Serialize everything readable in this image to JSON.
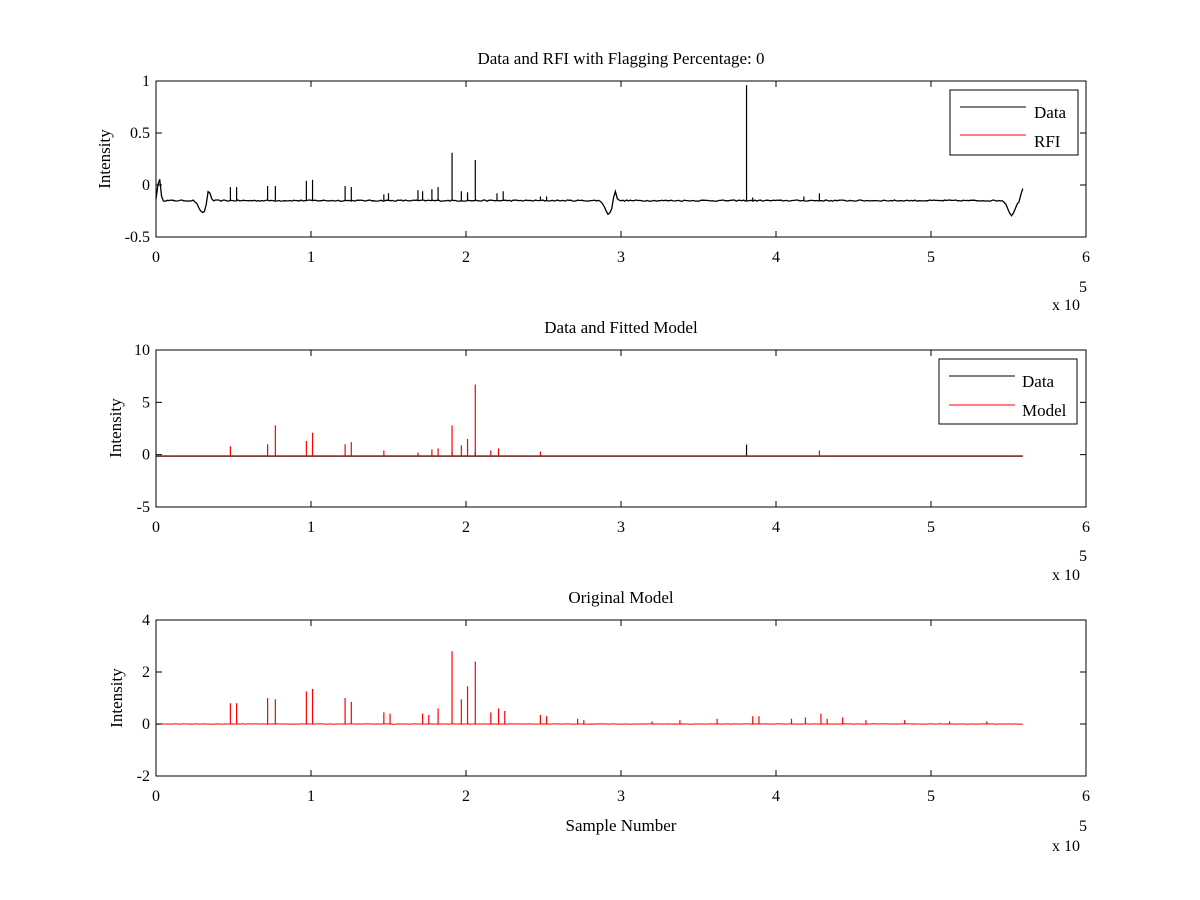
{
  "chart_data": [
    {
      "type": "line",
      "title": "Data and RFI with Flagging Percentage: 0",
      "xlabel": "",
      "ylabel": "Intensity",
      "xlim": [
        0,
        600000
      ],
      "ylim": [
        -0.5,
        1
      ],
      "x_ticks": [
        "0",
        "1",
        "2",
        "3",
        "4",
        "5",
        "6"
      ],
      "y_ticks": [
        "-0.5",
        "0",
        "0.5",
        "1"
      ],
      "x_exponent_text": "x 10",
      "x_exponent_power": "5",
      "grid": false,
      "legend": {
        "placement": "top-right",
        "entries": [
          "Data",
          "RFI"
        ]
      },
      "series": [
        {
          "name": "Data",
          "color": "#000000",
          "baseline": -0.15,
          "dips": [
            {
              "x": 30000,
              "y": -0.27
            },
            {
              "x": 292000,
              "y": -0.28
            },
            {
              "x": 552000,
              "y": -0.29
            }
          ],
          "bumps": [
            {
              "x": 2000,
              "y": 0.07
            },
            {
              "x": 34000,
              "y": -0.02
            },
            {
              "x": 296000,
              "y": -0.03
            },
            {
              "x": 559000,
              "y": -0.03
            }
          ],
          "spikes": [
            {
              "x": 48000,
              "y": -0.02
            },
            {
              "x": 52000,
              "y": -0.02
            },
            {
              "x": 72000,
              "y": -0.01
            },
            {
              "x": 77000,
              "y": -0.01
            },
            {
              "x": 97000,
              "y": 0.04
            },
            {
              "x": 101000,
              "y": 0.05
            },
            {
              "x": 122000,
              "y": -0.01
            },
            {
              "x": 126000,
              "y": -0.02
            },
            {
              "x": 147000,
              "y": -0.09
            },
            {
              "x": 150000,
              "y": -0.08
            },
            {
              "x": 169000,
              "y": -0.05
            },
            {
              "x": 172000,
              "y": -0.06
            },
            {
              "x": 178000,
              "y": -0.04
            },
            {
              "x": 182000,
              "y": -0.02
            },
            {
              "x": 191000,
              "y": 0.31
            },
            {
              "x": 197000,
              "y": -0.06
            },
            {
              "x": 201000,
              "y": -0.07
            },
            {
              "x": 206000,
              "y": 0.24
            },
            {
              "x": 220000,
              "y": -0.08
            },
            {
              "x": 224000,
              "y": -0.06
            },
            {
              "x": 248000,
              "y": -0.11
            },
            {
              "x": 252000,
              "y": -0.11
            },
            {
              "x": 381000,
              "y": 0.96
            },
            {
              "x": 385000,
              "y": -0.12
            },
            {
              "x": 418000,
              "y": -0.11
            },
            {
              "x": 428000,
              "y": -0.08
            }
          ]
        },
        {
          "name": "RFI",
          "color": "#ff0000",
          "values": []
        }
      ]
    },
    {
      "type": "line",
      "title": "Data and Fitted Model",
      "xlabel": "",
      "ylabel": "Intensity",
      "xlim": [
        0,
        600000
      ],
      "ylim": [
        -5,
        10
      ],
      "x_ticks": [
        "0",
        "1",
        "2",
        "3",
        "4",
        "5",
        "6"
      ],
      "y_ticks": [
        "-5",
        "0",
        "5",
        "10"
      ],
      "x_exponent_text": "x 10",
      "x_exponent_power": "5",
      "grid": false,
      "legend": {
        "placement": "top-right",
        "entries": [
          "Data",
          "Model"
        ]
      },
      "series": [
        {
          "name": "Data",
          "color": "#000000",
          "baseline": -0.15,
          "spikes": [
            {
              "x": 191000,
              "y": 0.3
            },
            {
              "x": 206000,
              "y": 0.25
            },
            {
              "x": 381000,
              "y": 0.96
            }
          ]
        },
        {
          "name": "Model",
          "color": "#ff0000",
          "baseline": -0.1,
          "spikes": [
            {
              "x": 48000,
              "y": 0.8
            },
            {
              "x": 72000,
              "y": 1.0
            },
            {
              "x": 77000,
              "y": 2.8
            },
            {
              "x": 97000,
              "y": 1.3
            },
            {
              "x": 101000,
              "y": 2.1
            },
            {
              "x": 122000,
              "y": 1.0
            },
            {
              "x": 126000,
              "y": 1.2
            },
            {
              "x": 147000,
              "y": 0.4
            },
            {
              "x": 169000,
              "y": 0.2
            },
            {
              "x": 178000,
              "y": 0.5
            },
            {
              "x": 182000,
              "y": 0.6
            },
            {
              "x": 191000,
              "y": 2.8
            },
            {
              "x": 197000,
              "y": 0.9
            },
            {
              "x": 201000,
              "y": 1.5
            },
            {
              "x": 206000,
              "y": 6.7
            },
            {
              "x": 216000,
              "y": 0.4
            },
            {
              "x": 221000,
              "y": 0.6
            },
            {
              "x": 248000,
              "y": 0.3
            },
            {
              "x": 428000,
              "y": 0.4
            }
          ]
        }
      ]
    },
    {
      "type": "line",
      "title": "Original Model",
      "xlabel": "Sample Number",
      "ylabel": "Intensity",
      "xlim": [
        0,
        600000
      ],
      "ylim": [
        -2,
        4
      ],
      "x_ticks": [
        "0",
        "1",
        "2",
        "3",
        "4",
        "5",
        "6"
      ],
      "y_ticks": [
        "-2",
        "0",
        "2",
        "4"
      ],
      "x_exponent_text": "x 10",
      "x_exponent_power": "5",
      "grid": false,
      "series": [
        {
          "name": "",
          "color": "#ff0000",
          "baseline": 0,
          "spikes": [
            {
              "x": 48000,
              "y": 0.8
            },
            {
              "x": 52000,
              "y": 0.8
            },
            {
              "x": 72000,
              "y": 1.0
            },
            {
              "x": 77000,
              "y": 0.95
            },
            {
              "x": 97000,
              "y": 1.25
            },
            {
              "x": 101000,
              "y": 1.35
            },
            {
              "x": 122000,
              "y": 1.0
            },
            {
              "x": 126000,
              "y": 0.85
            },
            {
              "x": 147000,
              "y": 0.45
            },
            {
              "x": 151000,
              "y": 0.4
            },
            {
              "x": 172000,
              "y": 0.4
            },
            {
              "x": 176000,
              "y": 0.35
            },
            {
              "x": 182000,
              "y": 0.6
            },
            {
              "x": 191000,
              "y": 2.8
            },
            {
              "x": 197000,
              "y": 0.95
            },
            {
              "x": 201000,
              "y": 1.45
            },
            {
              "x": 206000,
              "y": 2.4
            },
            {
              "x": 216000,
              "y": 0.45
            },
            {
              "x": 221000,
              "y": 0.6
            },
            {
              "x": 225000,
              "y": 0.5
            },
            {
              "x": 248000,
              "y": 0.35
            },
            {
              "x": 252000,
              "y": 0.3
            },
            {
              "x": 272000,
              "y": 0.2
            },
            {
              "x": 276000,
              "y": 0.15
            },
            {
              "x": 320000,
              "y": 0.1
            },
            {
              "x": 338000,
              "y": 0.15
            },
            {
              "x": 362000,
              "y": 0.2
            },
            {
              "x": 385000,
              "y": 0.3
            },
            {
              "x": 389000,
              "y": 0.3
            },
            {
              "x": 410000,
              "y": 0.2
            },
            {
              "x": 419000,
              "y": 0.25
            },
            {
              "x": 429000,
              "y": 0.4
            },
            {
              "x": 433000,
              "y": 0.2
            },
            {
              "x": 443000,
              "y": 0.25
            },
            {
              "x": 458000,
              "y": 0.15
            },
            {
              "x": 483000,
              "y": 0.15
            },
            {
              "x": 512000,
              "y": 0.1
            },
            {
              "x": 536000,
              "y": 0.1
            }
          ]
        }
      ]
    }
  ]
}
